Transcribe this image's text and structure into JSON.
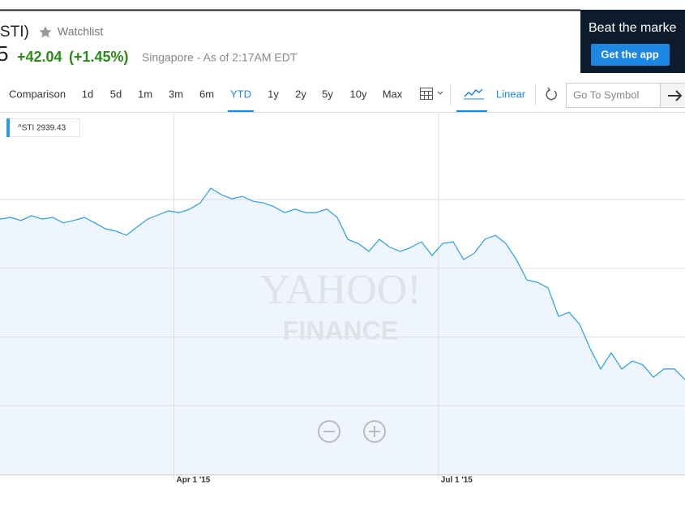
{
  "header": {
    "symbol": "^STI)",
    "watchlist": "Watchlist",
    "price": "5",
    "change": "+42.04",
    "change_percent": "(+1.45%)",
    "market": "Singapore - As of 2:17AM EDT"
  },
  "ad": {
    "text": "Beat the marke",
    "button": "Get the app"
  },
  "toolbar": {
    "comparison": "Comparison",
    "ranges": [
      "1d",
      "5d",
      "1m",
      "3m",
      "6m",
      "YTD",
      "1y",
      "2y",
      "5y",
      "10y",
      "Max"
    ],
    "active_range": "YTD",
    "scale": "Linear",
    "symbol_placeholder": "Go To Symbol"
  },
  "chart_data": {
    "type": "line",
    "legend_label": "^STI 2939.43",
    "watermark": [
      "YAHOO!",
      "FINANCE"
    ],
    "series": [
      {
        "name": "^STI",
        "color": "#2a9fe0",
        "values": [
          3343,
          3348,
          3339,
          3353,
          3343,
          3348,
          3332,
          3339,
          3348,
          3332,
          3315,
          3308,
          3296,
          3320,
          3343,
          3355,
          3367,
          3362,
          3372,
          3390,
          3433,
          3414,
          3402,
          3409,
          3395,
          3390,
          3379,
          3362,
          3372,
          3362,
          3362,
          3372,
          3348,
          3284,
          3272,
          3249,
          3284,
          3261,
          3249,
          3261,
          3277,
          3237,
          3272,
          3277,
          3225,
          3244,
          3284,
          3296,
          3272,
          3225,
          3166,
          3159,
          3143,
          3060,
          3072,
          3037,
          2966,
          2907,
          2954,
          2907,
          2930,
          2919,
          2883,
          2907,
          2907,
          2876
        ]
      }
    ],
    "xlim": [
      0,
      65
    ],
    "xticks": [
      {
        "value": 16.5,
        "label": "Apr 1 '15"
      },
      {
        "value": 41.6,
        "label": "Jul 1 '15"
      }
    ],
    "ylim": [
      2600,
      3650
    ],
    "ygrid": [
      3400,
      3200,
      3000,
      2800
    ],
    "grid": true
  }
}
